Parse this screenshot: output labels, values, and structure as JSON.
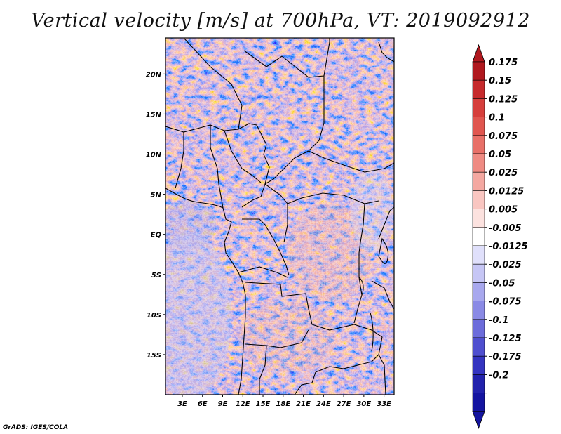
{
  "title": "Vertical velocity [m/s] at 700hPa, VT: 2019092912",
  "footer": "GrADS: IGES/COLA",
  "map": {
    "lat_labels": [
      "20N",
      "15N",
      "10N",
      "5N",
      "EQ",
      "5S",
      "10S",
      "15S"
    ],
    "lat_values": [
      20,
      15,
      10,
      5,
      0,
      -5,
      -10,
      -15
    ],
    "lon_labels": [
      "3E",
      "6E",
      "9E",
      "12E",
      "15E",
      "18E",
      "21E",
      "24E",
      "27E",
      "30E",
      "33E"
    ],
    "lon_values": [
      3,
      6,
      9,
      12,
      15,
      18,
      21,
      24,
      27,
      30,
      33
    ],
    "lon_range": [
      0.5,
      34.5
    ],
    "lat_range": [
      -20,
      24.5
    ]
  },
  "colorbar": {
    "labels": [
      "0.175",
      "0.15",
      "0.125",
      "0.1",
      "0.075",
      "0.05",
      "0.025",
      "0.0125",
      "0.005",
      "-0.005",
      "-0.0125",
      "-0.025",
      "-0.05",
      "-0.075",
      "-0.1",
      "-0.125",
      "-0.175",
      "-0.2"
    ],
    "colors": [
      "#b0181e",
      "#c62a2c",
      "#d63f3c",
      "#e0564f",
      "#e87068",
      "#ef8b83",
      "#f4a8a1",
      "#f9c6c1",
      "#fce2df",
      "#ffffff",
      "#e0e0fb",
      "#c6c6f5",
      "#a8a8ee",
      "#8a8ae5",
      "#6c6cdb",
      "#4f4fcf",
      "#3434c0",
      "#2222ac",
      "#1414a0"
    ],
    "top_arrow_color": "#b0181e",
    "bottom_arrow_color": "#1414a0"
  }
}
